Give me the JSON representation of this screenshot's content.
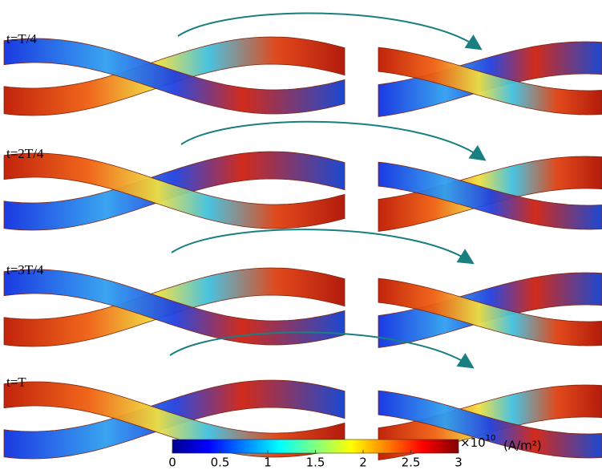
{
  "figure": {
    "panels": [
      {
        "label": "t=T/4"
      },
      {
        "label": "t=2T/4"
      },
      {
        "label": "t=3T/4"
      },
      {
        "label": "t=T"
      }
    ],
    "colorbar": {
      "range": [
        0,
        3
      ],
      "ticks": [
        0,
        0.5,
        1,
        1.5,
        2,
        2.5,
        3
      ],
      "multiplier_base": "×10",
      "multiplier_exponent": "10",
      "unit": "(A/m²)"
    }
  }
}
